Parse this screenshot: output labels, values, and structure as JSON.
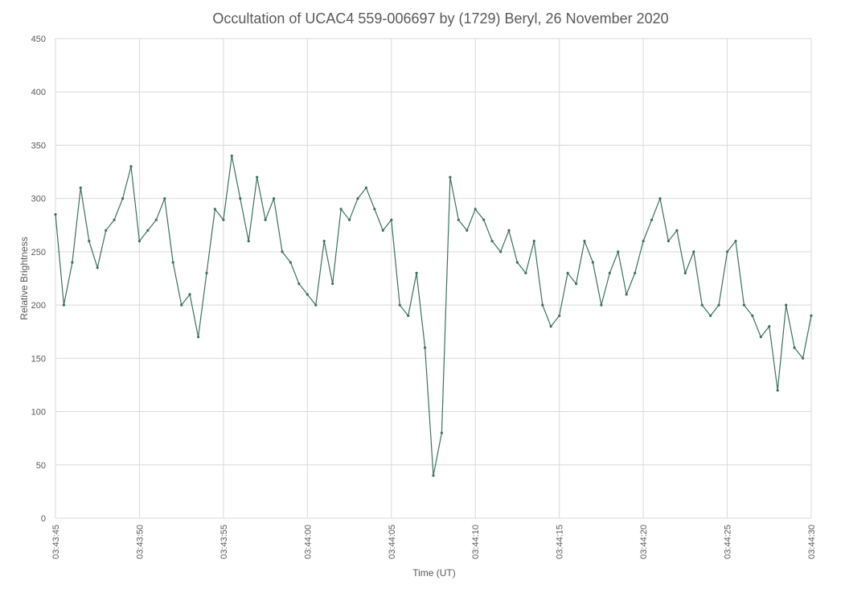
{
  "chart_data": {
    "type": "line",
    "title": "Occultation of UCAC4 559-006697 by (1729) Beryl, 26 November 2020",
    "xlabel": "Time (UT)",
    "ylabel": "Relative Brightness",
    "ylim": [
      0,
      450
    ],
    "yticks": [
      0,
      50,
      100,
      150,
      200,
      250,
      300,
      350,
      400,
      450
    ],
    "xlim": [
      "03:43:45",
      "03:44:30"
    ],
    "xticks": [
      "03:43:45",
      "03:43:50",
      "03:43:55",
      "03:44:00",
      "03:44:05",
      "03:44:10",
      "03:44:15",
      "03:44:20",
      "03:44:25",
      "03:44:30"
    ],
    "grid": true,
    "legend": "none",
    "series_color": "#3d7060",
    "series": [
      {
        "markers": true,
        "x": [
          "03:43:45.0",
          "03:43:45.5",
          "03:43:46.0",
          "03:43:46.5",
          "03:43:47.0",
          "03:43:47.5",
          "03:43:48.0",
          "03:43:48.5",
          "03:43:49.0",
          "03:43:49.5",
          "03:43:50.0",
          "03:43:50.5",
          "03:43:51.0",
          "03:43:51.5",
          "03:43:52.0",
          "03:43:52.5",
          "03:43:53.0",
          "03:43:53.5",
          "03:43:54.0",
          "03:43:54.5",
          "03:43:55.0",
          "03:43:55.5",
          "03:43:56.0",
          "03:43:56.5",
          "03:43:57.0",
          "03:43:57.5",
          "03:43:58.0",
          "03:43:58.5",
          "03:43:59.0",
          "03:43:59.5",
          "03:44:00.0",
          "03:44:00.5",
          "03:44:01.0",
          "03:44:01.5",
          "03:44:02.0",
          "03:44:02.5",
          "03:44:03.0",
          "03:44:03.5",
          "03:44:04.0",
          "03:44:04.5",
          "03:44:05.0",
          "03:44:05.5",
          "03:44:06.0",
          "03:44:06.5",
          "03:44:07.0",
          "03:44:07.5",
          "03:44:08.0",
          "03:44:08.5",
          "03:44:09.0",
          "03:44:09.5",
          "03:44:10.0",
          "03:44:10.5",
          "03:44:11.0",
          "03:44:11.5",
          "03:44:12.0",
          "03:44:12.5",
          "03:44:13.0",
          "03:44:13.5",
          "03:44:14.0",
          "03:44:14.5",
          "03:44:15.0",
          "03:44:15.5",
          "03:44:16.0",
          "03:44:16.5",
          "03:44:17.0",
          "03:44:17.5",
          "03:44:18.0",
          "03:44:18.5",
          "03:44:19.0",
          "03:44:19.5",
          "03:44:20.0",
          "03:44:20.5",
          "03:44:21.0",
          "03:44:21.5",
          "03:44:22.0",
          "03:44:22.5",
          "03:44:23.0",
          "03:44:23.5",
          "03:44:24.0",
          "03:44:24.5",
          "03:44:25.0",
          "03:44:25.5",
          "03:44:26.0",
          "03:44:26.5",
          "03:44:27.0",
          "03:44:27.5",
          "03:44:28.0",
          "03:44:28.5",
          "03:44:29.0",
          "03:44:29.5",
          "03:44:30.0"
        ],
        "values": [
          285,
          200,
          240,
          310,
          260,
          235,
          270,
          280,
          300,
          330,
          260,
          270,
          280,
          300,
          240,
          200,
          210,
          170,
          230,
          290,
          280,
          340,
          300,
          260,
          320,
          280,
          300,
          250,
          240,
          220,
          210,
          200,
          260,
          220,
          290,
          280,
          300,
          310,
          290,
          270,
          280,
          200,
          190,
          230,
          160,
          40,
          80,
          320,
          280,
          270,
          290,
          280,
          260,
          250,
          270,
          240,
          230,
          260,
          200,
          180,
          190,
          230,
          220,
          260,
          240,
          200,
          230,
          250,
          210,
          230,
          260,
          280,
          300,
          260,
          270,
          230,
          250,
          200,
          190,
          200,
          250,
          260,
          200,
          190,
          170,
          180,
          120,
          200,
          160,
          150,
          190
        ]
      }
    ]
  }
}
